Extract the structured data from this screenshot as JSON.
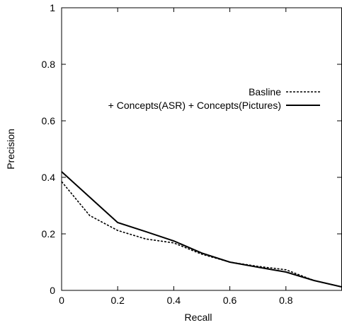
{
  "chart_data": {
    "type": "line",
    "title": "",
    "xlabel": "Recall",
    "ylabel": "Precision",
    "xlim": [
      0,
      1
    ],
    "ylim": [
      0,
      1
    ],
    "x_ticks": [
      0,
      0.2,
      0.4,
      0.6,
      0.8
    ],
    "x_tick_labels": [
      "0",
      "0.2",
      "0.4",
      "0.6",
      "0.8"
    ],
    "y_ticks": [
      0,
      0.2,
      0.4,
      0.6,
      0.8,
      1
    ],
    "y_tick_labels": [
      "0",
      "0.2",
      "0.4",
      "0.6",
      "0.8",
      "1"
    ],
    "grid": false,
    "legend_position": "top-right",
    "series": [
      {
        "name": "Basline",
        "style": "dashed",
        "color": "#000000",
        "x": [
          0,
          0.1,
          0.2,
          0.3,
          0.4,
          0.5,
          0.6,
          0.7,
          0.8,
          0.9,
          1.0
        ],
        "y": [
          0.385,
          0.265,
          0.212,
          0.182,
          0.168,
          0.128,
          0.1,
          0.085,
          0.073,
          0.035,
          0.012
        ]
      },
      {
        "name": "+ Concepts(ASR) + Concepts(Pictures)",
        "style": "solid",
        "color": "#000000",
        "x": [
          0,
          0.1,
          0.2,
          0.3,
          0.4,
          0.5,
          0.6,
          0.7,
          0.8,
          0.9,
          1.0
        ],
        "y": [
          0.42,
          0.33,
          0.24,
          0.208,
          0.175,
          0.132,
          0.1,
          0.082,
          0.065,
          0.035,
          0.012
        ]
      }
    ]
  }
}
